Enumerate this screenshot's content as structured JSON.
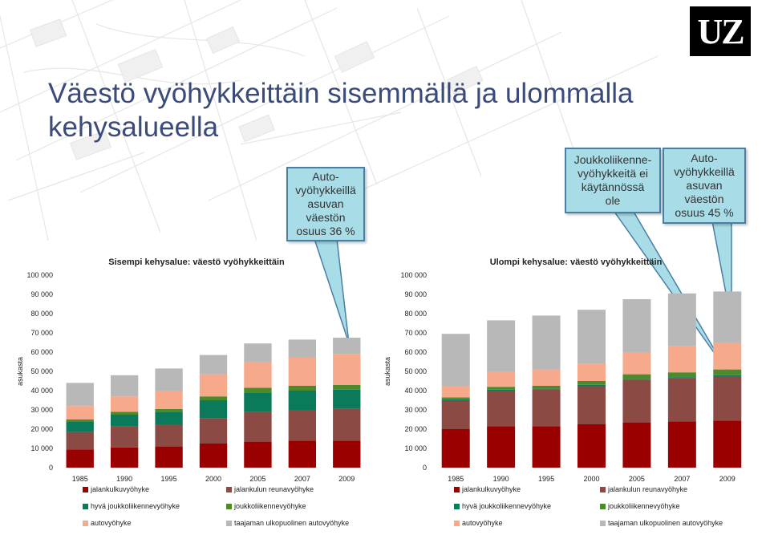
{
  "logo": "UZ",
  "title": "Väestö vyöhykkeittäin sisemmällä ja ulommalla kehysalueella",
  "callouts": {
    "left": "Auto-\nvyöhykkeillä\nasuvan\nväestön\nosuus 36 %",
    "middle": "Joukkoliikenne-\nvyöhykkeitä ei\nkäytännössä\nole",
    "right": "Auto-\nvyöhykkeillä\nasuvan\nväestön\nosuus 45 %"
  },
  "colors": {
    "jalankulkuvyohyke": "#9b0000",
    "jalankulun_reunavyohyke": "#8c4a44",
    "hyva_joukkoliikennevyohyke": "#0a7a5a",
    "joukkoliikennevyohyke": "#4f8a2a",
    "autovyohyke": "#f7a98c",
    "taajaman_ulkopuolinen_autovyohyke": "#b8b8b8",
    "callout_fill": "#a8dce6",
    "callout_border": "#4a7fa5",
    "title": "#3a4a7a"
  },
  "legend_labels": [
    "jalankulkuvyöhyke",
    "jalankulun reunavyöhyke",
    "hyvä joukkoliikennevyöhyke",
    "joukkoliikennevyöhyke",
    "autovyöhyke",
    "taajaman ulkopuolinen autovyöhyke"
  ],
  "chart_data": [
    {
      "type": "bar",
      "stacked": true,
      "title": "Sisempi kehysalue: väestö vyöhykkeittäin",
      "ylabel": "asukasta",
      "ylim": [
        0,
        100000
      ],
      "yticks": [
        "0",
        "10 000",
        "20 000",
        "30 000",
        "40 000",
        "50 000",
        "60 000",
        "70 000",
        "80 000",
        "90 000",
        "100 000"
      ],
      "categories": [
        "1985",
        "1990",
        "1995",
        "2000",
        "2005",
        "2007",
        "2009"
      ],
      "series": [
        {
          "name": "jalankulkuvyöhyke",
          "values": [
            9500,
            10500,
            11000,
            12500,
            13500,
            14000,
            14000
          ]
        },
        {
          "name": "jalankulun reunavyöhyke",
          "values": [
            9000,
            11000,
            11500,
            13000,
            15500,
            16000,
            16500
          ]
        },
        {
          "name": "hyvä joukkoliikennevyöhyke",
          "values": [
            5500,
            6000,
            6500,
            9500,
            10000,
            10000,
            10000
          ]
        },
        {
          "name": "joukkoliikennevyöhyke",
          "values": [
            1000,
            1500,
            1500,
            2000,
            2500,
            2500,
            2500
          ]
        },
        {
          "name": "autovyöhyke",
          "values": [
            7000,
            8000,
            9500,
            11500,
            13500,
            15000,
            16000
          ]
        },
        {
          "name": "taajaman ulkopuolinen autovyöhyke",
          "values": [
            12000,
            11000,
            11500,
            10000,
            9500,
            9000,
            8500
          ]
        }
      ]
    },
    {
      "type": "bar",
      "stacked": true,
      "title": "Ulompi kehysalue: väestö vyöhykkeittäin",
      "ylabel": "asukasta",
      "ylim": [
        0,
        100000
      ],
      "yticks": [
        "0",
        "10 000",
        "20 000",
        "30 000",
        "40 000",
        "50 000",
        "60 000",
        "70 000",
        "80 000",
        "90 000",
        "100 000"
      ],
      "categories": [
        "1985",
        "1990",
        "1995",
        "2000",
        "2005",
        "2007",
        "2009"
      ],
      "series": [
        {
          "name": "jalankulkuvyöhyke",
          "values": [
            20000,
            21500,
            21500,
            22500,
            23500,
            24000,
            24500
          ]
        },
        {
          "name": "jalankulun reunavyöhyke",
          "values": [
            15000,
            18500,
            19000,
            20000,
            22000,
            22500,
            23000
          ]
        },
        {
          "name": "hyvä joukkoliikennevyöhyke",
          "values": [
            500,
            500,
            500,
            500,
            500,
            500,
            500
          ]
        },
        {
          "name": "joukkoliikennevyöhyke",
          "values": [
            1000,
            1500,
            1500,
            2000,
            2500,
            2500,
            3000
          ]
        },
        {
          "name": "autovyöhyke",
          "values": [
            6000,
            8000,
            8500,
            9000,
            11500,
            13500,
            14000
          ]
        },
        {
          "name": "taajaman ulkopuolinen autovyöhyke",
          "values": [
            27000,
            26500,
            28000,
            28000,
            27500,
            27500,
            26500
          ]
        }
      ]
    }
  ]
}
